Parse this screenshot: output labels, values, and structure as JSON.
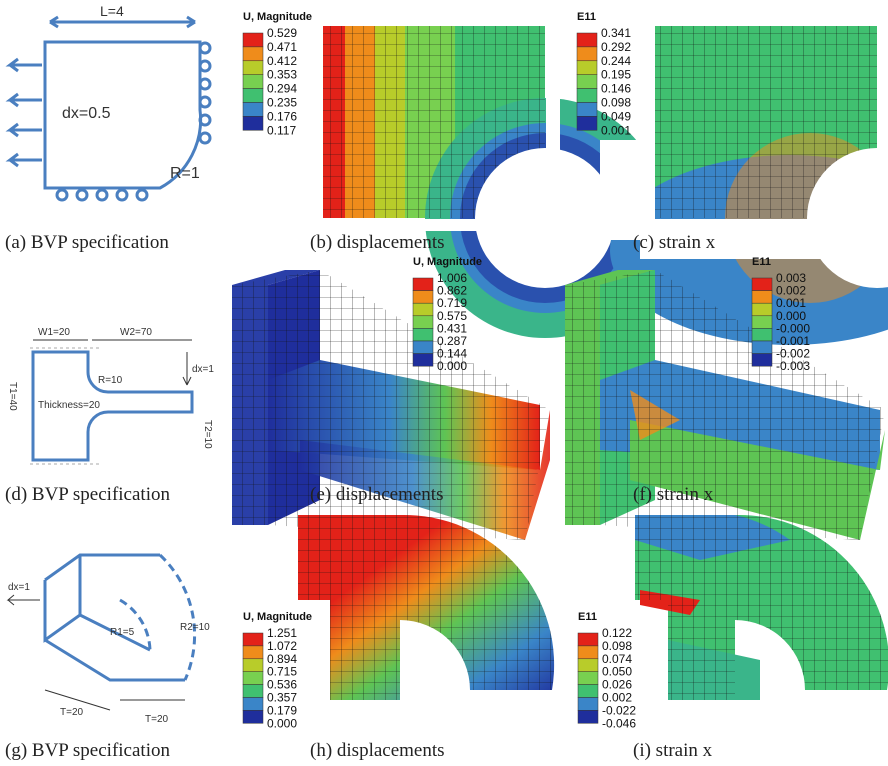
{
  "panels": [
    {
      "caption": "(a) BVP specification",
      "labels": [
        "L=4",
        "dx=0.5",
        "R=1"
      ]
    },
    {
      "caption": "(b) displacements",
      "legend": {
        "title": "U, Magnitude",
        "values": [
          "0.529",
          "0.471",
          "0.412",
          "0.353",
          "0.294",
          "0.235",
          "0.176",
          "0.117"
        ]
      }
    },
    {
      "caption": "(c) strain x",
      "legend": {
        "title": "E11",
        "values": [
          "0.341",
          "0.292",
          "0.244",
          "0.195",
          "0.146",
          "0.098",
          "0.049",
          "0.001"
        ]
      }
    },
    {
      "caption": "(d) BVP specification",
      "labels": [
        "W1=20",
        "W2=70",
        "dx=1",
        "R=10",
        "T2=10",
        "T1=40",
        "Thickness=20"
      ]
    },
    {
      "caption": "(e) displacements",
      "legend": {
        "title": "U, Magnitude",
        "values": [
          "1.006",
          "0.862",
          "0.719",
          "0.575",
          "0.431",
          "0.287",
          "0.144",
          "0.000"
        ]
      }
    },
    {
      "caption": "(f) strain x",
      "legend": {
        "title": "E11",
        "values": [
          "0.003",
          "0.002",
          "0.001",
          "0.000",
          "-0.000",
          "-0.001",
          "-0.002",
          "-0.003"
        ]
      }
    },
    {
      "caption": "(g) BVP specification",
      "labels": [
        "dx=1",
        "R1=5",
        "R2=10",
        "T=20",
        "T=20"
      ]
    },
    {
      "caption": "(h) displacements",
      "legend": {
        "title": "U, Magnitude",
        "values": [
          "1.251",
          "1.072",
          "0.894",
          "0.715",
          "0.536",
          "0.357",
          "0.179",
          "0.000"
        ]
      }
    },
    {
      "caption": "(i) strain x",
      "legend": {
        "title": "E11",
        "values": [
          "0.122",
          "0.098",
          "0.074",
          "0.050",
          "0.026",
          "0.002",
          "-0.022",
          "-0.046"
        ]
      }
    }
  ]
}
